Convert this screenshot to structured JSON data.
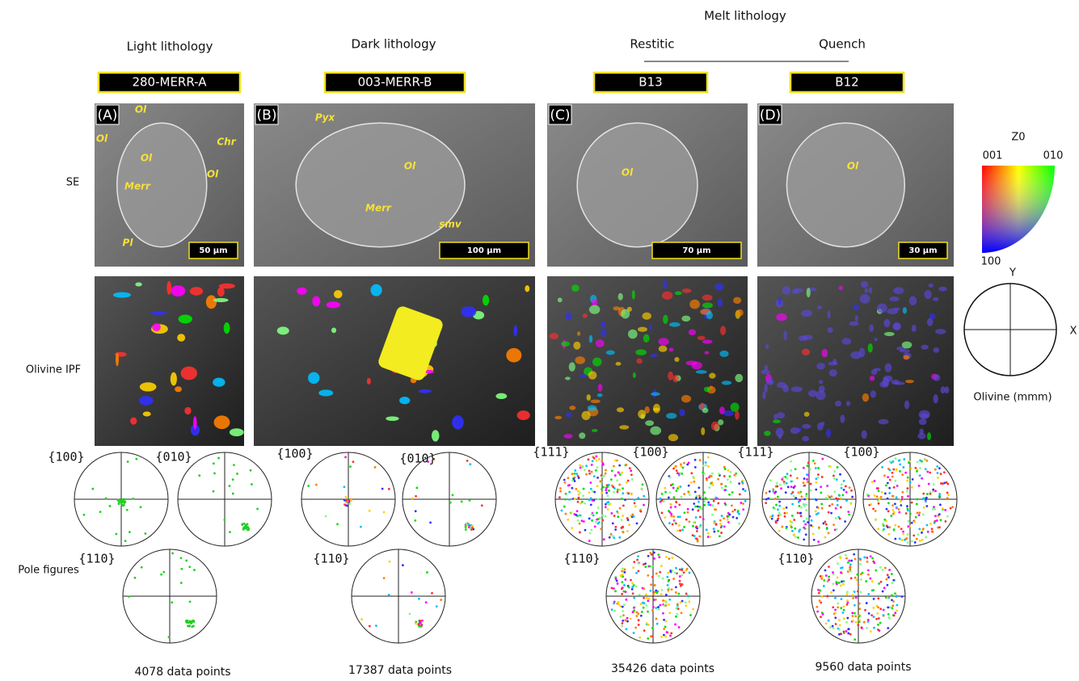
{
  "header": {
    "group": "Melt lithology",
    "columns": [
      {
        "title": "Light lithology",
        "sample": "280-MERR-A"
      },
      {
        "title": "Dark lithology",
        "sample": "003-MERR-B"
      },
      {
        "title": "Restitic",
        "sample": "B13"
      },
      {
        "title": "Quench",
        "sample": "B12"
      }
    ]
  },
  "row_labels": [
    "SE",
    "Olivine IPF",
    "Pole figures"
  ],
  "panels": [
    {
      "letter": "(A)",
      "scale_bar": "50 µm",
      "minerals": [
        "Ol",
        "Ol",
        "Chr",
        "Ol",
        "Ol",
        "Merr",
        "Pl"
      ],
      "pole_figures": [
        "{100}",
        "{010}",
        "{110}"
      ],
      "data_points": "4078 data points"
    },
    {
      "letter": "(B)",
      "scale_bar": "100 µm",
      "minerals": [
        "Pyx",
        "Ol",
        "Merr",
        "smv"
      ],
      "pole_figures": [
        "{100}",
        "{010}",
        "{110}"
      ],
      "data_points": "17387 data points"
    },
    {
      "letter": "(C)",
      "scale_bar": "70 µm",
      "minerals": [
        "Ol"
      ],
      "pole_figures": [
        "{111}",
        "{100}",
        "{110}"
      ],
      "data_points": "35426 data points"
    },
    {
      "letter": "(D)",
      "scale_bar": "30 µm",
      "minerals": [
        "Ol"
      ],
      "pole_figures": [
        "{111}",
        "{100}",
        "{110}"
      ],
      "data_points": "9560 data points"
    }
  ],
  "key": {
    "title": "Z0",
    "corners": [
      "001",
      "010",
      "100"
    ],
    "axes": [
      "Y",
      "X"
    ],
    "caption": "Olivine (mmm)"
  }
}
